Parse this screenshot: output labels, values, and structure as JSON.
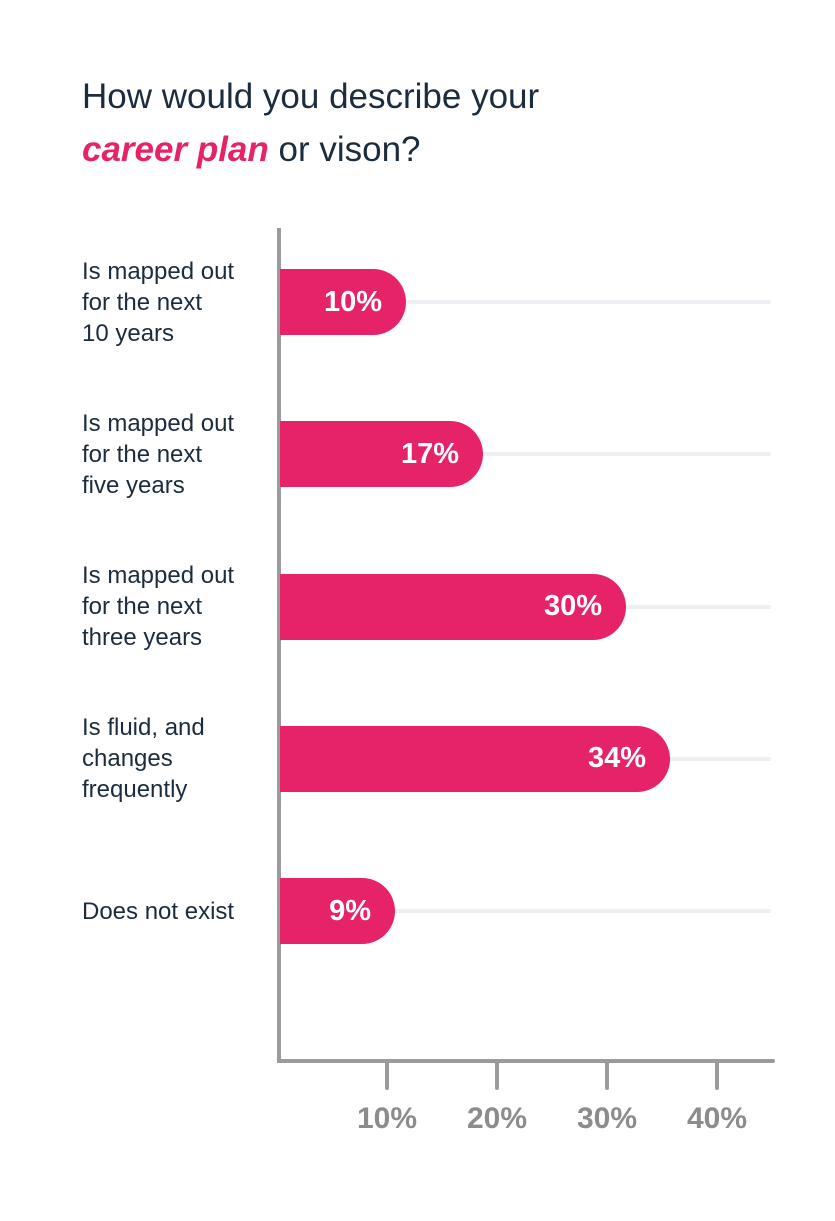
{
  "title": {
    "line1": "How would you describe your",
    "line2_highlight": "career plan",
    "line2_rest": " or vison?"
  },
  "colors": {
    "bar": "#E62369",
    "accent_text": "#E62369",
    "title_text": "#1A2C3D",
    "category_text": "#1A2C3D",
    "bar_value_text": "#FFFFFF",
    "axis": "#9B9B9B",
    "tick_label": "#8C8C8C",
    "gridline": "#ECEEF2",
    "background": "#FFFFFF"
  },
  "rows": [
    {
      "label": "Is mapped out\nfor the next\n10 years",
      "value": 10,
      "value_label": "10%"
    },
    {
      "label": "Is mapped out\nfor the next\nfive years",
      "value": 17,
      "value_label": "17%"
    },
    {
      "label": "Is mapped out\nfor the next\nthree years",
      "value": 30,
      "value_label": "30%"
    },
    {
      "label": "Is fluid, and\nchanges\nfrequently",
      "value": 34,
      "value_label": "34%"
    },
    {
      "label": "Does not exist",
      "value": 9,
      "value_label": "9%"
    }
  ],
  "x_axis": {
    "ticks": [
      {
        "value": 10,
        "label": "10%"
      },
      {
        "value": 20,
        "label": "20%"
      },
      {
        "value": 30,
        "label": "30%"
      },
      {
        "value": 40,
        "label": "40%"
      }
    ]
  },
  "chart_data": {
    "type": "bar",
    "orientation": "horizontal",
    "title": "How would you describe your career plan or vison?",
    "title_highlight": "career plan",
    "categories": [
      "Is mapped out for the next 10 years",
      "Is mapped out for the next five years",
      "Is mapped out for the next three years",
      "Is fluid, and changes frequently",
      "Does not exist"
    ],
    "values": [
      10,
      17,
      30,
      34,
      9
    ],
    "value_labels": [
      "10%",
      "17%",
      "30%",
      "34%",
      "9%"
    ],
    "xlabel": "",
    "ylabel": "",
    "x_tick_labels": [
      "10%",
      "20%",
      "30%",
      "40%"
    ],
    "xlim": [
      0,
      45
    ],
    "grid": true,
    "legend": false
  }
}
